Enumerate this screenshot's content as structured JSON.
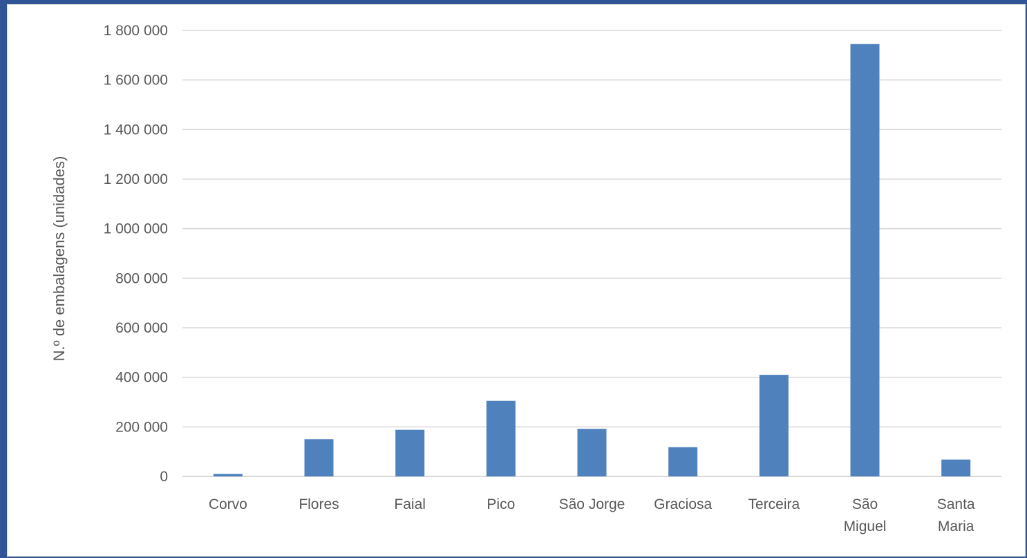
{
  "chart_data": {
    "type": "bar",
    "title": "",
    "xlabel": "",
    "ylabel": "N.º de embalagens (unidades)",
    "categories": [
      "Corvo",
      "Flores",
      "Faial",
      "Pico",
      "São Jorge",
      "Graciosa",
      "Terceira",
      "São Miguel",
      "Santa Maria"
    ],
    "category_lines": [
      [
        "Corvo"
      ],
      [
        "Flores"
      ],
      [
        "Faial"
      ],
      [
        "Pico"
      ],
      [
        "São Jorge"
      ],
      [
        "Graciosa"
      ],
      [
        "Terceira"
      ],
      [
        "São",
        "Miguel"
      ],
      [
        "Santa",
        "Maria"
      ]
    ],
    "values": [
      10000,
      150000,
      188000,
      305000,
      192000,
      118000,
      410000,
      1745000,
      68000
    ],
    "ylim": [
      0,
      1800000
    ],
    "yticks": [
      0,
      200000,
      400000,
      600000,
      800000,
      1000000,
      1200000,
      1400000,
      1600000,
      1800000
    ],
    "ytick_labels": [
      "0",
      "200 000",
      "400 000",
      "600 000",
      "800 000",
      "1 000 000",
      "1 200 000",
      "1 400 000",
      "1 600 000",
      "1 800 000"
    ],
    "grid": true,
    "legend": "none",
    "colors": {
      "bar": "#4f81bd",
      "grid": "#d9d9d9",
      "text": "#595959",
      "background": "#2f5597"
    }
  }
}
